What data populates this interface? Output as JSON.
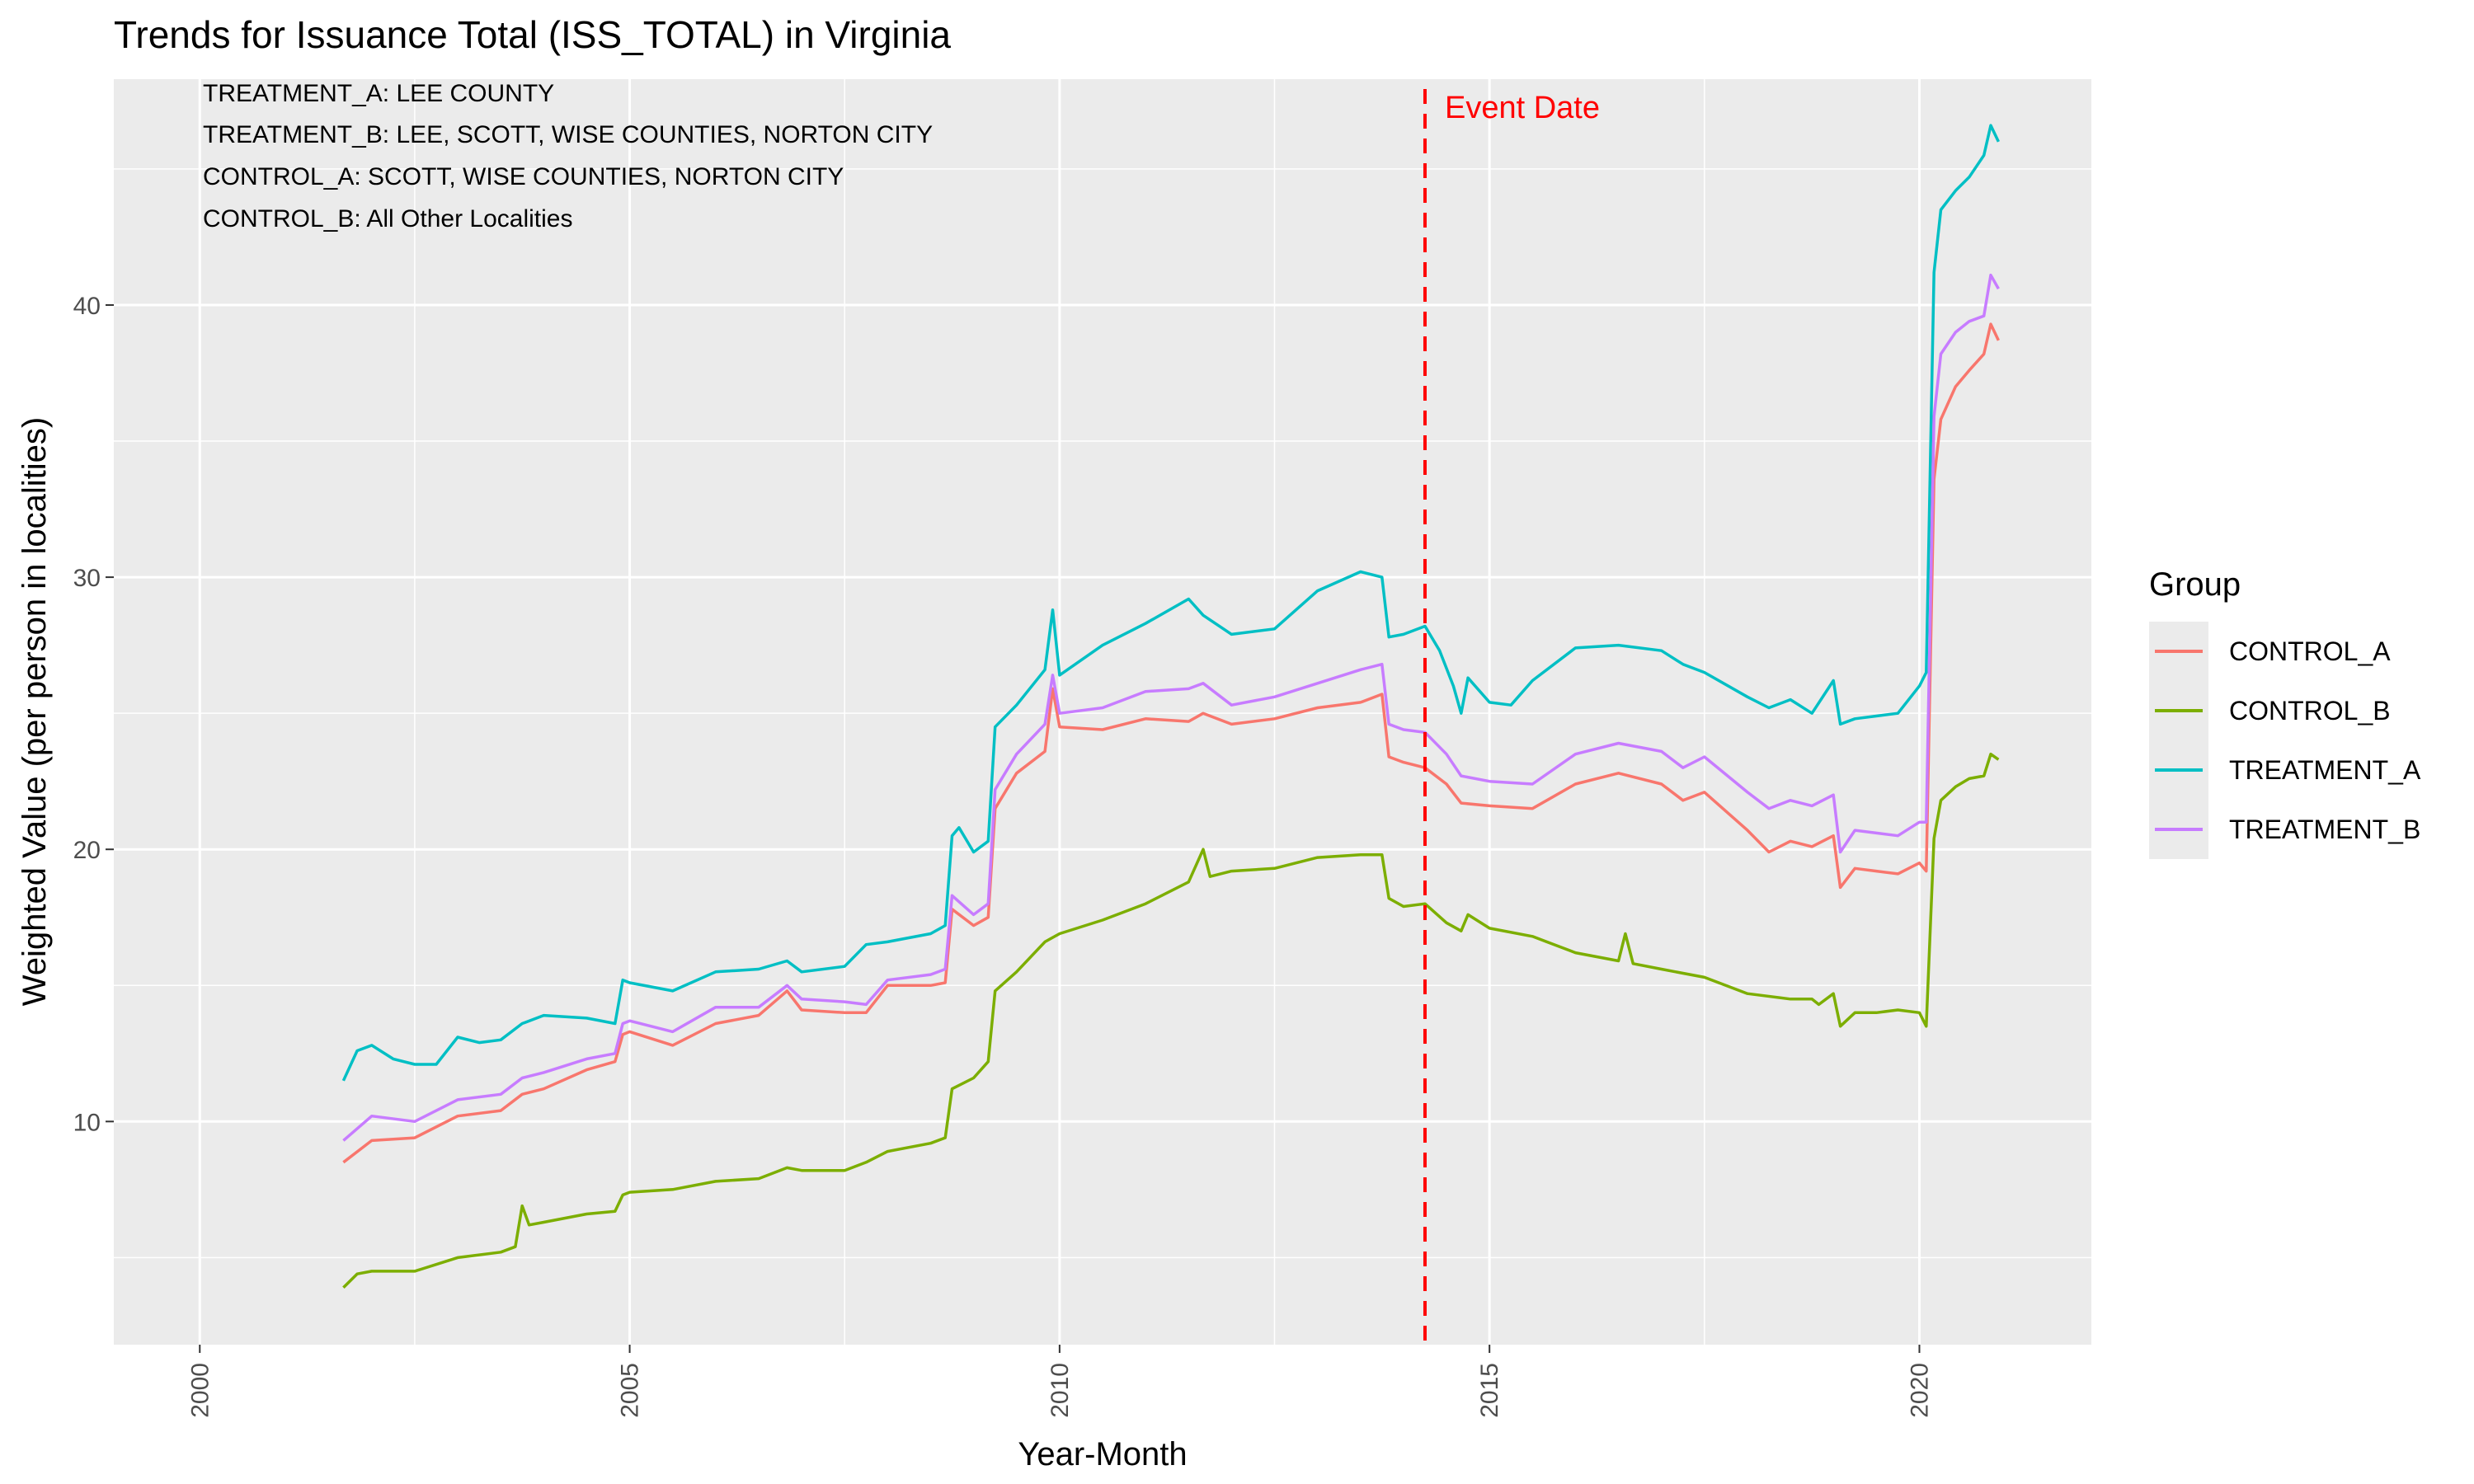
{
  "chart_data": {
    "type": "line",
    "title": "Trends for Issuance Total (ISS_TOTAL) in Virginia",
    "xlabel": "Year-Month",
    "ylabel": "Weighted Value (per person in localities)",
    "xlim": [
      1999.0,
      2022.0
    ],
    "ylim": [
      1.8,
      48.3
    ],
    "x_ticks": [
      2000,
      2005,
      2010,
      2015,
      2020
    ],
    "x_tick_labels": [
      "2000",
      "2005",
      "2010",
      "2015",
      "2020"
    ],
    "y_ticks": [
      10,
      20,
      30,
      40
    ],
    "y_tick_labels": [
      "10",
      "20",
      "30",
      "40"
    ],
    "grid": true,
    "legend": {
      "title": "Group",
      "position": "right"
    },
    "annotation_lines": [
      "TREATMENT_A: LEE COUNTY",
      "TREATMENT_B: LEE, SCOTT, WISE COUNTIES, NORTON CITY",
      "CONTROL_A: SCOTT, WISE COUNTIES, NORTON CITY",
      "CONTROL_B: All Other Localities"
    ],
    "event": {
      "label": "Event Date",
      "x": 2014.25,
      "color": "#ff0000"
    },
    "series": [
      {
        "name": "CONTROL_A",
        "color": "#F8766D",
        "points": [
          [
            2001.67,
            8.5
          ],
          [
            2002.0,
            9.3
          ],
          [
            2002.5,
            9.4
          ],
          [
            2003.0,
            10.2
          ],
          [
            2003.5,
            10.4
          ],
          [
            2003.75,
            11.0
          ],
          [
            2004.0,
            11.2
          ],
          [
            2004.5,
            11.9
          ],
          [
            2004.83,
            12.2
          ],
          [
            2004.92,
            13.2
          ],
          [
            2005.0,
            13.3
          ],
          [
            2005.5,
            12.8
          ],
          [
            2006.0,
            13.6
          ],
          [
            2006.5,
            13.9
          ],
          [
            2006.83,
            14.8
          ],
          [
            2007.0,
            14.1
          ],
          [
            2007.5,
            14.0
          ],
          [
            2007.75,
            14.0
          ],
          [
            2008.0,
            15.0
          ],
          [
            2008.5,
            15.0
          ],
          [
            2008.67,
            15.1
          ],
          [
            2008.75,
            17.8
          ],
          [
            2009.0,
            17.2
          ],
          [
            2009.17,
            17.5
          ],
          [
            2009.25,
            21.5
          ],
          [
            2009.5,
            22.8
          ],
          [
            2009.83,
            23.6
          ],
          [
            2009.92,
            25.9
          ],
          [
            2010.0,
            24.5
          ],
          [
            2010.5,
            24.4
          ],
          [
            2011.0,
            24.8
          ],
          [
            2011.5,
            24.7
          ],
          [
            2011.67,
            25.0
          ],
          [
            2012.0,
            24.6
          ],
          [
            2012.5,
            24.8
          ],
          [
            2013.0,
            25.2
          ],
          [
            2013.5,
            25.4
          ],
          [
            2013.75,
            25.7
          ],
          [
            2013.83,
            23.4
          ],
          [
            2014.0,
            23.2
          ],
          [
            2014.25,
            23.0
          ],
          [
            2014.5,
            22.4
          ],
          [
            2014.67,
            21.7
          ],
          [
            2015.0,
            21.6
          ],
          [
            2015.5,
            21.5
          ],
          [
            2016.0,
            22.4
          ],
          [
            2016.5,
            22.8
          ],
          [
            2017.0,
            22.4
          ],
          [
            2017.25,
            21.8
          ],
          [
            2017.5,
            22.1
          ],
          [
            2018.0,
            20.7
          ],
          [
            2018.25,
            19.9
          ],
          [
            2018.5,
            20.3
          ],
          [
            2018.75,
            20.1
          ],
          [
            2019.0,
            20.5
          ],
          [
            2019.08,
            18.6
          ],
          [
            2019.25,
            19.3
          ],
          [
            2019.5,
            19.2
          ],
          [
            2019.75,
            19.1
          ],
          [
            2020.0,
            19.5
          ],
          [
            2020.08,
            19.2
          ],
          [
            2020.17,
            33.6
          ],
          [
            2020.25,
            35.8
          ],
          [
            2020.42,
            37.0
          ],
          [
            2020.58,
            37.6
          ],
          [
            2020.75,
            38.2
          ],
          [
            2020.83,
            39.3
          ],
          [
            2020.92,
            38.7
          ]
        ]
      },
      {
        "name": "CONTROL_B",
        "color": "#7CAE00",
        "points": [
          [
            2001.67,
            3.9
          ],
          [
            2001.83,
            4.4
          ],
          [
            2002.0,
            4.5
          ],
          [
            2002.5,
            4.5
          ],
          [
            2003.0,
            5.0
          ],
          [
            2003.5,
            5.2
          ],
          [
            2003.67,
            5.4
          ],
          [
            2003.75,
            6.9
          ],
          [
            2003.83,
            6.2
          ],
          [
            2004.0,
            6.3
          ],
          [
            2004.5,
            6.6
          ],
          [
            2004.83,
            6.7
          ],
          [
            2004.92,
            7.3
          ],
          [
            2005.0,
            7.4
          ],
          [
            2005.5,
            7.5
          ],
          [
            2006.0,
            7.8
          ],
          [
            2006.5,
            7.9
          ],
          [
            2006.83,
            8.3
          ],
          [
            2007.0,
            8.2
          ],
          [
            2007.5,
            8.2
          ],
          [
            2007.75,
            8.5
          ],
          [
            2008.0,
            8.9
          ],
          [
            2008.5,
            9.2
          ],
          [
            2008.67,
            9.4
          ],
          [
            2008.75,
            11.2
          ],
          [
            2009.0,
            11.6
          ],
          [
            2009.17,
            12.2
          ],
          [
            2009.25,
            14.8
          ],
          [
            2009.5,
            15.5
          ],
          [
            2009.83,
            16.6
          ],
          [
            2010.0,
            16.9
          ],
          [
            2010.5,
            17.4
          ],
          [
            2011.0,
            18.0
          ],
          [
            2011.5,
            18.8
          ],
          [
            2011.67,
            20.0
          ],
          [
            2011.75,
            19.0
          ],
          [
            2012.0,
            19.2
          ],
          [
            2012.5,
            19.3
          ],
          [
            2013.0,
            19.7
          ],
          [
            2013.5,
            19.8
          ],
          [
            2013.75,
            19.8
          ],
          [
            2013.83,
            18.2
          ],
          [
            2014.0,
            17.9
          ],
          [
            2014.25,
            18.0
          ],
          [
            2014.5,
            17.3
          ],
          [
            2014.67,
            17.0
          ],
          [
            2014.75,
            17.6
          ],
          [
            2015.0,
            17.1
          ],
          [
            2015.5,
            16.8
          ],
          [
            2016.0,
            16.2
          ],
          [
            2016.5,
            15.9
          ],
          [
            2016.58,
            16.9
          ],
          [
            2016.67,
            15.8
          ],
          [
            2017.0,
            15.6
          ],
          [
            2017.5,
            15.3
          ],
          [
            2018.0,
            14.7
          ],
          [
            2018.5,
            14.5
          ],
          [
            2018.75,
            14.5
          ],
          [
            2018.83,
            14.3
          ],
          [
            2019.0,
            14.7
          ],
          [
            2019.08,
            13.5
          ],
          [
            2019.25,
            14.0
          ],
          [
            2019.5,
            14.0
          ],
          [
            2019.75,
            14.1
          ],
          [
            2020.0,
            14.0
          ],
          [
            2020.08,
            13.5
          ],
          [
            2020.17,
            20.4
          ],
          [
            2020.25,
            21.8
          ],
          [
            2020.42,
            22.3
          ],
          [
            2020.58,
            22.6
          ],
          [
            2020.75,
            22.7
          ],
          [
            2020.83,
            23.5
          ],
          [
            2020.92,
            23.3
          ]
        ]
      },
      {
        "name": "TREATMENT_A",
        "color": "#00BFC4",
        "points": [
          [
            2001.67,
            11.5
          ],
          [
            2001.83,
            12.6
          ],
          [
            2002.0,
            12.8
          ],
          [
            2002.25,
            12.3
          ],
          [
            2002.5,
            12.1
          ],
          [
            2002.75,
            12.1
          ],
          [
            2003.0,
            13.1
          ],
          [
            2003.25,
            12.9
          ],
          [
            2003.5,
            13.0
          ],
          [
            2003.75,
            13.6
          ],
          [
            2004.0,
            13.9
          ],
          [
            2004.5,
            13.8
          ],
          [
            2004.83,
            13.6
          ],
          [
            2004.92,
            15.2
          ],
          [
            2005.0,
            15.1
          ],
          [
            2005.5,
            14.8
          ],
          [
            2006.0,
            15.5
          ],
          [
            2006.5,
            15.6
          ],
          [
            2006.83,
            15.9
          ],
          [
            2007.0,
            15.5
          ],
          [
            2007.5,
            15.7
          ],
          [
            2007.75,
            16.5
          ],
          [
            2008.0,
            16.6
          ],
          [
            2008.5,
            16.9
          ],
          [
            2008.67,
            17.2
          ],
          [
            2008.75,
            20.5
          ],
          [
            2008.83,
            20.8
          ],
          [
            2009.0,
            19.9
          ],
          [
            2009.17,
            20.3
          ],
          [
            2009.25,
            24.5
          ],
          [
            2009.5,
            25.3
          ],
          [
            2009.83,
            26.6
          ],
          [
            2009.92,
            28.8
          ],
          [
            2010.0,
            26.4
          ],
          [
            2010.5,
            27.5
          ],
          [
            2011.0,
            28.3
          ],
          [
            2011.5,
            29.2
          ],
          [
            2011.67,
            28.6
          ],
          [
            2012.0,
            27.9
          ],
          [
            2012.5,
            28.1
          ],
          [
            2013.0,
            29.5
          ],
          [
            2013.5,
            30.2
          ],
          [
            2013.75,
            30.0
          ],
          [
            2013.83,
            27.8
          ],
          [
            2014.0,
            27.9
          ],
          [
            2014.25,
            28.2
          ],
          [
            2014.42,
            27.3
          ],
          [
            2014.58,
            26.0
          ],
          [
            2014.67,
            25.0
          ],
          [
            2014.75,
            26.3
          ],
          [
            2015.0,
            25.4
          ],
          [
            2015.25,
            25.3
          ],
          [
            2015.5,
            26.2
          ],
          [
            2016.0,
            27.4
          ],
          [
            2016.5,
            27.5
          ],
          [
            2017.0,
            27.3
          ],
          [
            2017.25,
            26.8
          ],
          [
            2017.5,
            26.5
          ],
          [
            2018.0,
            25.6
          ],
          [
            2018.25,
            25.2
          ],
          [
            2018.5,
            25.5
          ],
          [
            2018.75,
            25.0
          ],
          [
            2019.0,
            26.2
          ],
          [
            2019.08,
            24.6
          ],
          [
            2019.25,
            24.8
          ],
          [
            2019.5,
            24.9
          ],
          [
            2019.75,
            25.0
          ],
          [
            2020.0,
            26.0
          ],
          [
            2020.08,
            26.5
          ],
          [
            2020.17,
            41.2
          ],
          [
            2020.25,
            43.5
          ],
          [
            2020.42,
            44.2
          ],
          [
            2020.58,
            44.7
          ],
          [
            2020.75,
            45.5
          ],
          [
            2020.83,
            46.6
          ],
          [
            2020.92,
            46.0
          ]
        ]
      },
      {
        "name": "TREATMENT_B",
        "color": "#C77CFF",
        "points": [
          [
            2001.67,
            9.3
          ],
          [
            2002.0,
            10.2
          ],
          [
            2002.5,
            10.0
          ],
          [
            2003.0,
            10.8
          ],
          [
            2003.5,
            11.0
          ],
          [
            2003.75,
            11.6
          ],
          [
            2004.0,
            11.8
          ],
          [
            2004.5,
            12.3
          ],
          [
            2004.83,
            12.5
          ],
          [
            2004.92,
            13.6
          ],
          [
            2005.0,
            13.7
          ],
          [
            2005.5,
            13.3
          ],
          [
            2006.0,
            14.2
          ],
          [
            2006.5,
            14.2
          ],
          [
            2006.83,
            15.0
          ],
          [
            2007.0,
            14.5
          ],
          [
            2007.5,
            14.4
          ],
          [
            2007.75,
            14.3
          ],
          [
            2008.0,
            15.2
          ],
          [
            2008.5,
            15.4
          ],
          [
            2008.67,
            15.6
          ],
          [
            2008.75,
            18.3
          ],
          [
            2009.0,
            17.6
          ],
          [
            2009.17,
            18.0
          ],
          [
            2009.25,
            22.2
          ],
          [
            2009.5,
            23.5
          ],
          [
            2009.83,
            24.6
          ],
          [
            2009.92,
            26.4
          ],
          [
            2010.0,
            25.0
          ],
          [
            2010.5,
            25.2
          ],
          [
            2011.0,
            25.8
          ],
          [
            2011.5,
            25.9
          ],
          [
            2011.67,
            26.1
          ],
          [
            2012.0,
            25.3
          ],
          [
            2012.5,
            25.6
          ],
          [
            2013.0,
            26.1
          ],
          [
            2013.5,
            26.6
          ],
          [
            2013.75,
            26.8
          ],
          [
            2013.83,
            24.6
          ],
          [
            2014.0,
            24.4
          ],
          [
            2014.25,
            24.3
          ],
          [
            2014.5,
            23.5
          ],
          [
            2014.67,
            22.7
          ],
          [
            2015.0,
            22.5
          ],
          [
            2015.5,
            22.4
          ],
          [
            2016.0,
            23.5
          ],
          [
            2016.5,
            23.9
          ],
          [
            2017.0,
            23.6
          ],
          [
            2017.25,
            23.0
          ],
          [
            2017.5,
            23.4
          ],
          [
            2018.0,
            22.1
          ],
          [
            2018.25,
            21.5
          ],
          [
            2018.5,
            21.8
          ],
          [
            2018.75,
            21.6
          ],
          [
            2019.0,
            22.0
          ],
          [
            2019.08,
            19.9
          ],
          [
            2019.25,
            20.7
          ],
          [
            2019.5,
            20.6
          ],
          [
            2019.75,
            20.5
          ],
          [
            2020.0,
            21.0
          ],
          [
            2020.08,
            21.0
          ],
          [
            2020.17,
            35.9
          ],
          [
            2020.25,
            38.2
          ],
          [
            2020.42,
            39.0
          ],
          [
            2020.58,
            39.4
          ],
          [
            2020.75,
            39.6
          ],
          [
            2020.83,
            41.1
          ],
          [
            2020.92,
            40.6
          ]
        ]
      }
    ]
  }
}
